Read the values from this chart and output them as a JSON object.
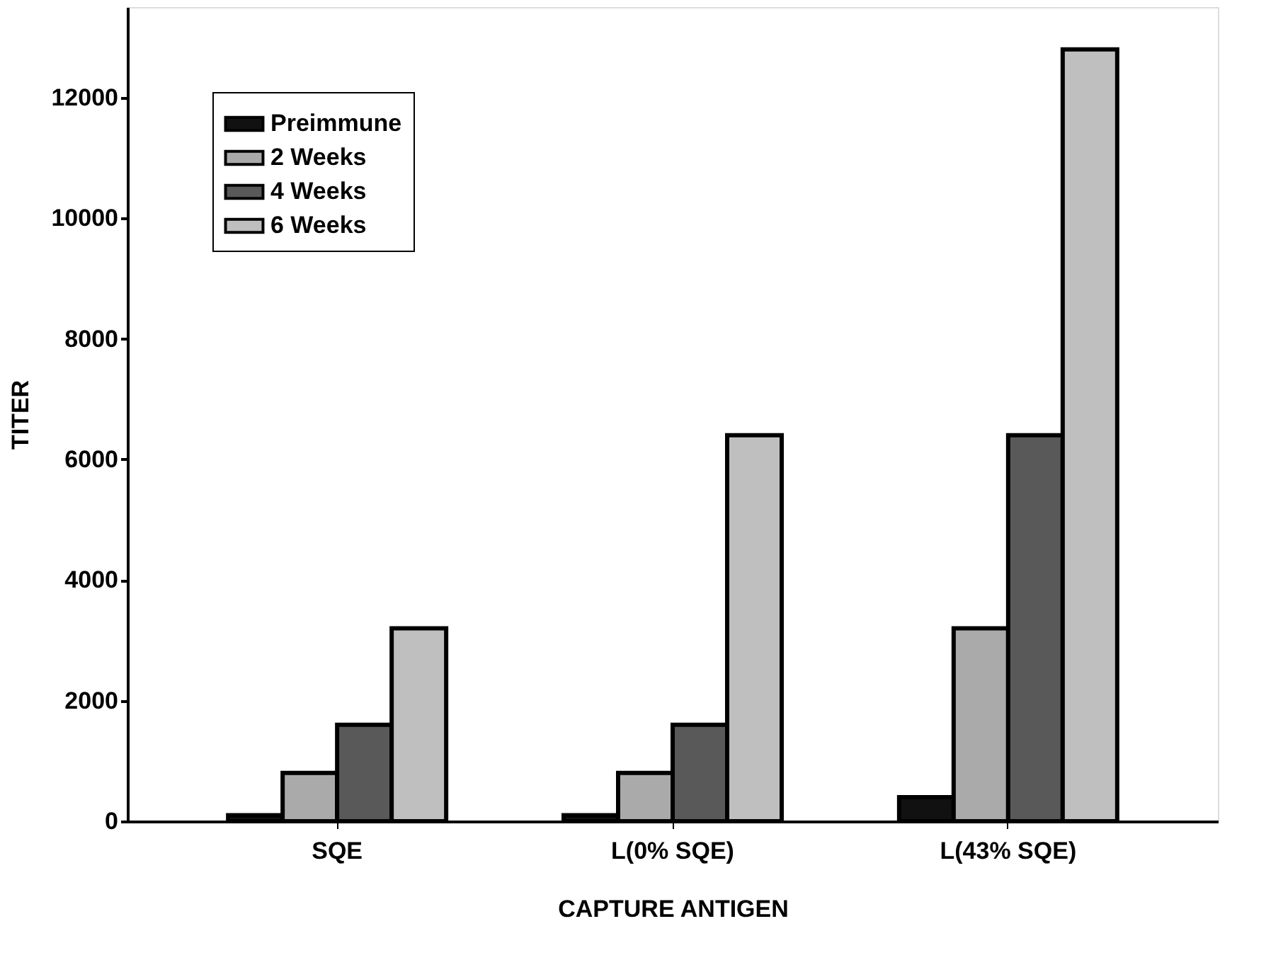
{
  "chart_data": {
    "type": "bar",
    "xlabel": "CAPTURE ANTIGEN",
    "ylabel": "TITER",
    "categories": [
      "SQE",
      "L(0% SQE)",
      "L(43% SQE)"
    ],
    "series": [
      {
        "name": "Preimmune",
        "color": "#111111",
        "values": [
          100,
          100,
          400
        ]
      },
      {
        "name": "2 Weeks",
        "color": "#aaaaaa",
        "values": [
          800,
          800,
          3200
        ]
      },
      {
        "name": "4 Weeks",
        "color": "#595959",
        "values": [
          1600,
          1600,
          6400
        ]
      },
      {
        "name": "6 Weeks",
        "color": "#bfbfbf",
        "values": [
          3200,
          6400,
          12800
        ]
      }
    ],
    "ylim": [
      0,
      13500
    ],
    "yticks": [
      0,
      2000,
      4000,
      6000,
      8000,
      10000,
      12000
    ],
    "grid": false,
    "legend": "top left"
  }
}
